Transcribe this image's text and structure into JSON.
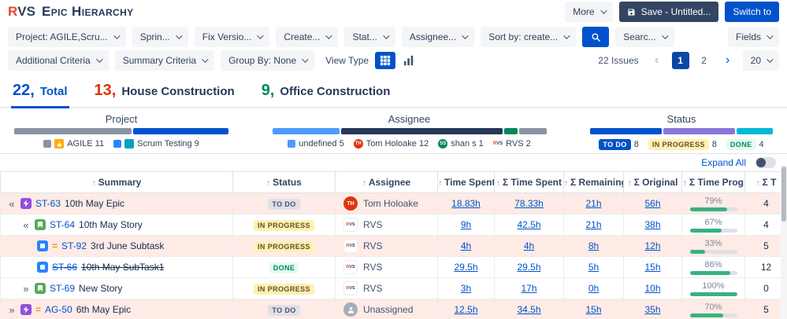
{
  "colors": {
    "accent": "#0052cc",
    "dark_navy": "#172b4d",
    "row_highlight": "#ffebe6",
    "progress_green": "#36b37e",
    "save_button": "#344563",
    "epic": "#904ee2",
    "story": "#57ab5a",
    "subtask": "#2684ff",
    "chip_inprogress_bg": "#fff0b3",
    "chip_done_text": "#00875a"
  },
  "brand": {
    "r": "R",
    "vs": "VS"
  },
  "header": {
    "title": "Epic Hierarchy",
    "more": "More",
    "save": "Save - Untitled...",
    "switch_to": "Switch to"
  },
  "toolbar": {
    "project": "Project: AGILE,Scru...",
    "sprint": "Sprin...",
    "fix_version": "Fix Versio...",
    "created": "Create...",
    "status": "Stat...",
    "assignee": "Assignee...",
    "sort_by": "Sort by: create...",
    "search_text": "Searc...",
    "fields": "Fields",
    "additional_criteria": "Additional Criteria",
    "summary_criteria": "Summary Criteria",
    "group_by": "Group By: None",
    "view_type": "View Type",
    "issues_count": "22 Issues",
    "prev": "‹",
    "page1": "1",
    "page2": "2",
    "next": "›",
    "page_size": "20"
  },
  "tabs": [
    {
      "count": "22,",
      "label": "Total",
      "color": "#0052cc"
    },
    {
      "count": "13,",
      "label": "House Construction",
      "color": "#de350b"
    },
    {
      "count": "9,",
      "label": "Office Construction",
      "color": "#00875a"
    }
  ],
  "summary": {
    "project": {
      "title": "Project",
      "segments": [
        {
          "label": "AGILE",
          "count": 11,
          "color": "#8993a4",
          "width": "55%"
        },
        {
          "label": "Scrum Testing",
          "count": 9,
          "color": "#0052cc",
          "width": "45%"
        }
      ],
      "legend": [
        {
          "swatch": "#8993a4",
          "label": "AGILE 11"
        },
        {
          "swatch": "#2684ff",
          "label": "Scrum Testing 9"
        }
      ]
    },
    "assignee": {
      "title": "Assignee",
      "segments": [
        {
          "label": "undefined",
          "count": 5,
          "color": "#4c9aff",
          "width": "25%"
        },
        {
          "label": "Tom Holoake",
          "count": 12,
          "color": "#253858",
          "width": "60%"
        },
        {
          "label": "shan s",
          "count": 1,
          "color": "#00875a",
          "width": "5%"
        },
        {
          "label": "RVS",
          "count": 2,
          "color": "#8993a4",
          "width": "10%"
        }
      ],
      "legend": [
        {
          "swatch": "#4c9aff",
          "label": "undefined 5"
        },
        {
          "avatar": "TH",
          "avatar_color": "#de350b",
          "label": "Tom Holoake 12"
        },
        {
          "avatar": "SS",
          "avatar_color": "#00875a",
          "label": "shan s 1"
        },
        {
          "label": "RVS 2"
        }
      ]
    },
    "status": {
      "title": "Status",
      "segments": [
        {
          "label": "TO DO",
          "count": 8,
          "color": "#0052cc",
          "width": "40%"
        },
        {
          "label": "IN PROGRESS",
          "count": 8,
          "color": "#8777d9",
          "width": "40%"
        },
        {
          "label": "DONE",
          "count": 4,
          "color": "#00b8d9",
          "width": "20%"
        }
      ],
      "legend": [
        {
          "chip": "TO DO",
          "count": "8"
        },
        {
          "chip": "IN PROGRESS",
          "count": "8"
        },
        {
          "chip": "DONE",
          "count": "4"
        }
      ]
    },
    "expand_all": "Expand All"
  },
  "table": {
    "columns": [
      {
        "sort": "↑",
        "label": "Summary"
      },
      {
        "sort": "↑",
        "label": "Status"
      },
      {
        "sort": "↑",
        "label": "Assignee"
      },
      {
        "sort": "↑",
        "label": "Time Spent"
      },
      {
        "sort": "↑",
        "label": "Σ Time Spent"
      },
      {
        "sort": "↑",
        "label": "Σ Remaining"
      },
      {
        "sort": "↑",
        "label": "Σ Original"
      },
      {
        "sort": "↑",
        "label": "Σ Time Prog"
      },
      {
        "sort": "↑",
        "label": "Σ T"
      }
    ],
    "rows": [
      {
        "toggler": "«",
        "type": "epic",
        "priority": "",
        "key": "ST-63",
        "summary": "10th May Epic",
        "status": "TO DO",
        "assignee": "Tom Holoake",
        "avatar": "TH",
        "time_spent": "18.83h",
        "sum_time_spent": "78.33h",
        "sum_remaining": "21h",
        "sum_original": "56h",
        "progress": "79%",
        "sum_t": "4",
        "highlighted": true
      },
      {
        "toggler": "«",
        "type": "story",
        "priority": "",
        "key": "ST-64",
        "summary": "10th May Story",
        "status": "IN PROGRESS",
        "assignee": "RVS",
        "avatar": "RVS",
        "time_spent": "9h",
        "sum_time_spent": "42.5h",
        "sum_remaining": "21h",
        "sum_original": "38h",
        "progress": "67%",
        "sum_t": "4",
        "highlighted": false
      },
      {
        "toggler": "",
        "type": "subtask",
        "priority": "=",
        "key": "ST-92",
        "summary": "3rd June Subtask",
        "status": "IN PROGRESS",
        "assignee": "RVS",
        "avatar": "RVS",
        "time_spent": "4h",
        "sum_time_spent": "4h",
        "sum_remaining": "8h",
        "sum_original": "12h",
        "progress": "33%",
        "sum_t": "5",
        "highlighted": true
      },
      {
        "toggler": "",
        "type": "subtask",
        "priority": "",
        "key": "ST-66",
        "summary": "10th May SubTask1",
        "status": "DONE",
        "assignee": "RVS",
        "avatar": "RVS",
        "time_spent": "29.5h",
        "sum_time_spent": "29.5h",
        "sum_remaining": "5h",
        "sum_original": "15h",
        "progress": "86%",
        "sum_t": "12",
        "highlighted": false,
        "struck": true
      },
      {
        "toggler": "»",
        "type": "story",
        "priority": "",
        "key": "ST-69",
        "summary": "New Story",
        "status": "IN PROGRESS",
        "assignee": "RVS",
        "avatar": "RVS",
        "time_spent": "3h",
        "sum_time_spent": "17h",
        "sum_remaining": "0h",
        "sum_original": "10h",
        "progress": "100%",
        "sum_t": "0",
        "highlighted": false
      },
      {
        "toggler": "»",
        "type": "epic",
        "priority": "=",
        "key": "AG-50",
        "summary": "6th May Epic",
        "status": "TO DO",
        "assignee": "Unassigned",
        "avatar": "",
        "time_spent": "12.5h",
        "sum_time_spent": "34.5h",
        "sum_remaining": "15h",
        "sum_original": "35h",
        "progress": "70%",
        "sum_t": "5",
        "highlighted": true
      }
    ]
  }
}
